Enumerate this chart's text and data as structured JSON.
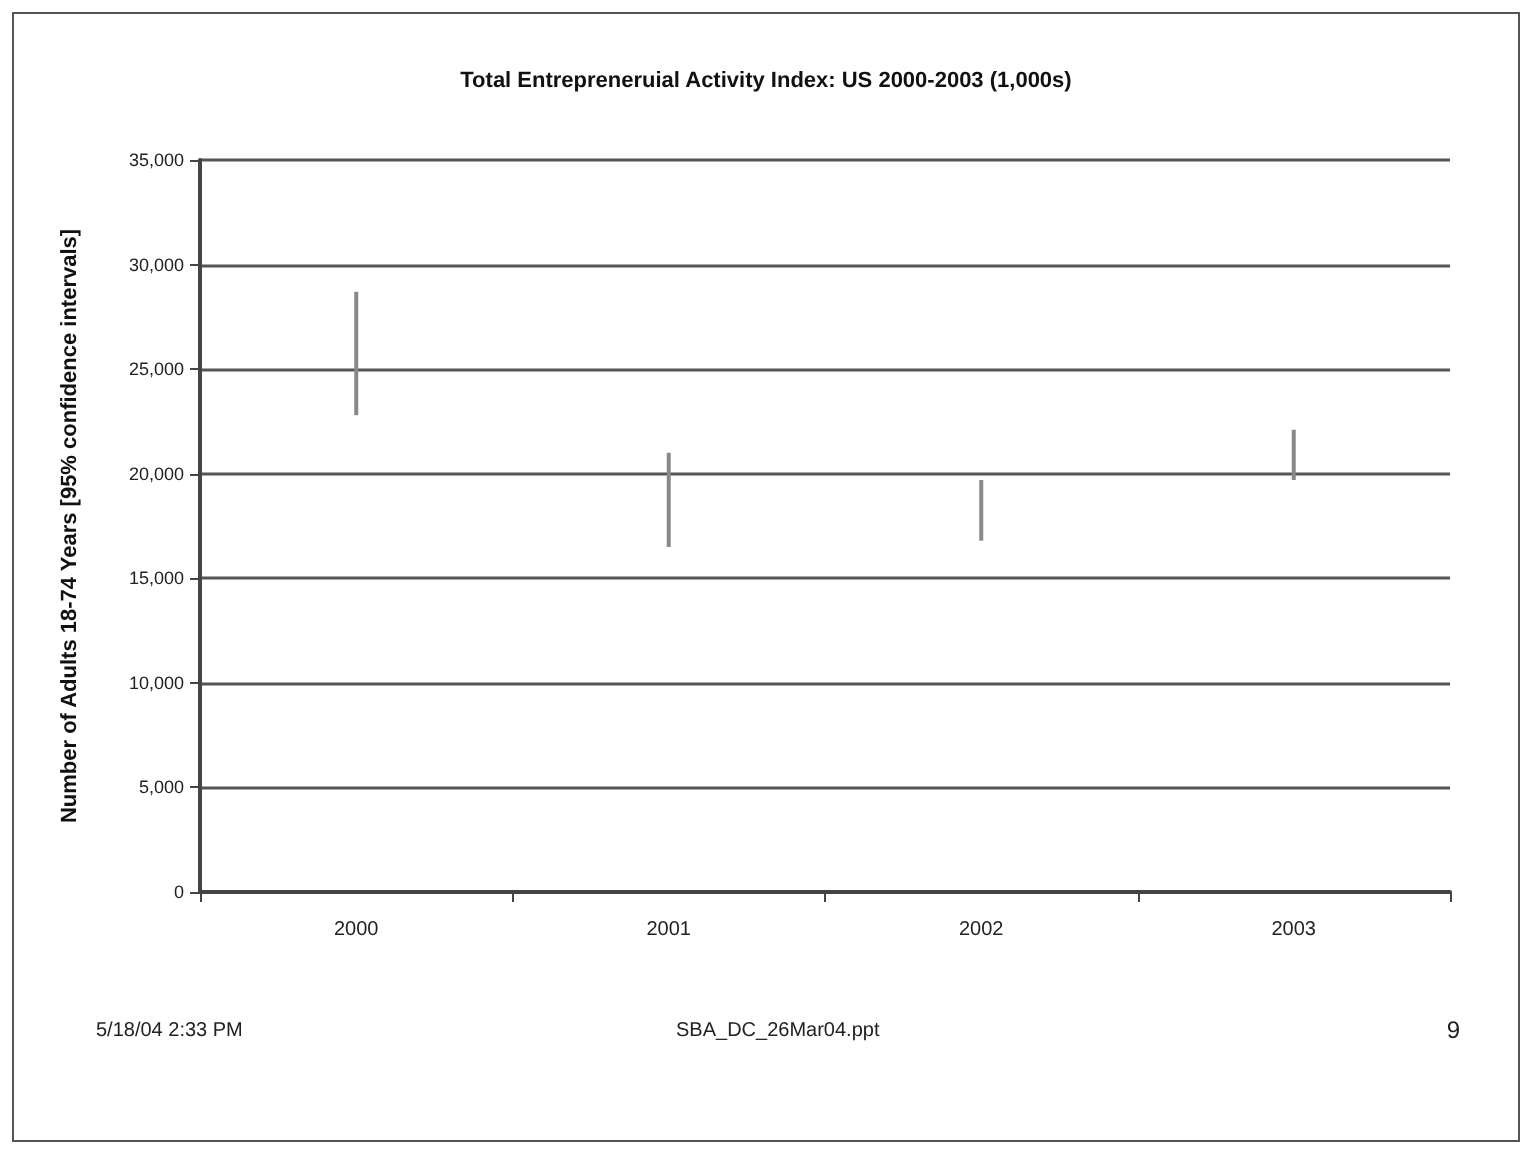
{
  "chart_data": {
    "type": "bar",
    "title": "Total Entrepreneruial Activity Index: US 2000-2003 (1,000s)",
    "ylabel": "Number of Adults 18-74 Years [95% confidence intervals]",
    "categories": [
      "2000",
      "2001",
      "2002",
      "2003"
    ],
    "base": [
      22800,
      16500,
      16800,
      19700
    ],
    "values": [
      5900,
      4500,
      2900,
      2400
    ],
    "color": "#888888",
    "ylim": [
      0,
      35000
    ],
    "yticks": [
      {
        "value": 0,
        "label": "0"
      },
      {
        "value": 5000,
        "label": "5,000"
      },
      {
        "value": 10000,
        "label": "10,000"
      },
      {
        "value": 15000,
        "label": "15,000"
      },
      {
        "value": 20000,
        "label": "20,000"
      },
      {
        "value": 25000,
        "label": "25,000"
      },
      {
        "value": 30000,
        "label": "30,000"
      },
      {
        "value": 35000,
        "label": "35,000"
      }
    ],
    "grid": "y",
    "annotations": [
      "5/18/04 2:33 PM",
      "SBA_DC_26Mar04.ppt",
      "9"
    ]
  }
}
